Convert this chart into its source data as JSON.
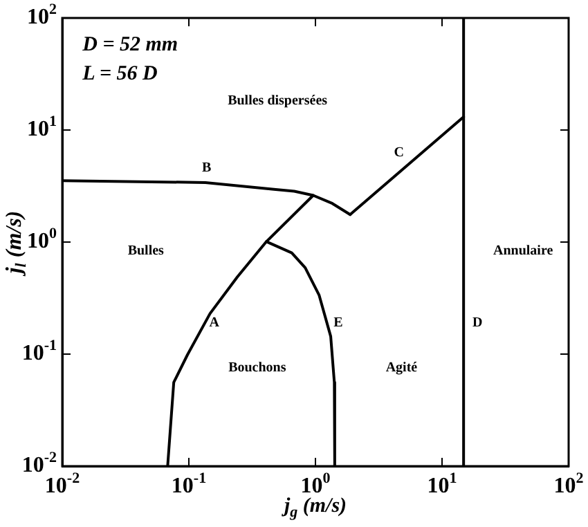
{
  "chart_data": {
    "type": "line",
    "xlabel": "j$_{g}$ (m/s)",
    "ylabel": "j$_{l}$ (m/s)",
    "log": "xy",
    "grid": false,
    "legend": false,
    "marker": "none",
    "line_style": "solid",
    "xlim": [
      0.01,
      100
    ],
    "ylim": [
      0.01,
      100
    ],
    "xticks": [
      {
        "value": 0.01,
        "label": "10$^{-2}$"
      },
      {
        "value": 0.1,
        "label": "10$^{-1}$"
      },
      {
        "value": 1,
        "label": "10$^{0}$"
      },
      {
        "value": 10,
        "label": "10$^{1}$"
      },
      {
        "value": 100,
        "label": "10$^{2}$"
      }
    ],
    "yticks": [
      {
        "value": 0.01,
        "label": "10$^{-2}$"
      },
      {
        "value": 0.1,
        "label": "10$^{-1}$"
      },
      {
        "value": 1,
        "label": "10$^{0}$"
      },
      {
        "value": 10,
        "label": "10$^{1}$"
      },
      {
        "value": 100,
        "label": "10$^{2}$"
      }
    ],
    "series": [
      {
        "color": "#000000",
        "x": [
          0.01,
          0.135,
          0.47,
          0.68,
          0.96,
          1.36,
          1.88
        ],
        "values": [
          3.53,
          3.4,
          2.96,
          2.84,
          2.61,
          2.21,
          1.76
        ]
      },
      {
        "color": "#000000",
        "x": [
          1.88,
          14.8
        ],
        "values": [
          1.76,
          13.1
        ]
      },
      {
        "color": "#000000",
        "x": [
          14.8,
          14.8
        ],
        "values": [
          0.01,
          100
        ]
      },
      {
        "color": "#000000",
        "x": [
          0.068,
          0.076,
          0.0975,
          0.147,
          0.242,
          0.41,
          0.96
        ],
        "values": [
          0.01,
          0.056,
          0.0986,
          0.23,
          0.49,
          1.01,
          2.61
        ]
      },
      {
        "color": "#000000",
        "x": [
          0.41,
          0.65,
          0.83,
          1.07,
          1.32,
          1.41,
          1.42
        ],
        "values": [
          1.01,
          0.8,
          0.59,
          0.335,
          0.144,
          0.056,
          0.01
        ]
      }
    ],
    "annotations": [
      "D = 52 mm",
      "L = 56 D",
      "B",
      "C",
      "A",
      "E",
      "D",
      "Bulles dispersées",
      "Bulles",
      "Bouchons",
      "Agité",
      "Annulaire"
    ]
  }
}
